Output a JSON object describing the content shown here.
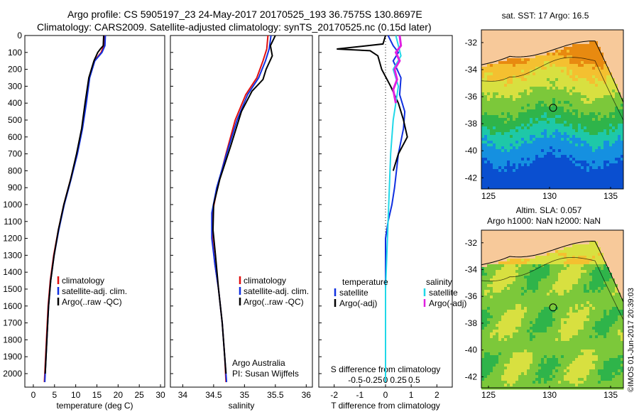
{
  "header": {
    "line1": "Argo profile: CS 5905197_23 24-May-2017 20170525_193 36.7575S 130.8697E",
    "line2": "Climatology: CARS2009. Satellite-adjusted climatology: synTS_20170525.nc (0.15d later)"
  },
  "side_text": "©IMOS 01-Jun-2017 20:39:03",
  "colors": {
    "clim": "#e01010",
    "sat": "#1030e0",
    "argo": "#000000",
    "sat_s": "#20d8e8",
    "argo_s": "#e020e0",
    "land": "#f7c99a",
    "frame": "#000000"
  },
  "chart_data": [
    {
      "id": "temp",
      "type": "line",
      "xlabel": "temperature (deg C)",
      "ylabel": "",
      "xlim": [
        -2,
        31
      ],
      "ylim": [
        2080,
        0
      ],
      "xticks": [
        0,
        5,
        10,
        15,
        20,
        25,
        30
      ],
      "yticks": [
        0,
        100,
        200,
        300,
        400,
        500,
        600,
        700,
        800,
        900,
        1000,
        1100,
        1200,
        1300,
        1400,
        1500,
        1600,
        1700,
        1800,
        1900,
        2000
      ],
      "legend": [
        "climatology",
        "satellite-adj. clim.",
        "Argo(..raw -QC)"
      ],
      "series": [
        {
          "name": "climatology",
          "color": "clim",
          "points": [
            [
              16.8,
              0
            ],
            [
              16.6,
              60
            ],
            [
              16,
              100
            ],
            [
              14.4,
              150
            ],
            [
              13.2,
              250
            ],
            [
              12.4,
              400
            ],
            [
              11.5,
              550
            ],
            [
              10.3,
              700
            ],
            [
              8.8,
              850
            ],
            [
              7.2,
              1000
            ],
            [
              5.9,
              1150
            ],
            [
              4.8,
              1300
            ],
            [
              4,
              1450
            ],
            [
              3.5,
              1600
            ],
            [
              3.1,
              1800
            ],
            [
              2.6,
              2050
            ]
          ]
        },
        {
          "name": "satellite-adj. clim.",
          "color": "sat",
          "points": [
            [
              17,
              0
            ],
            [
              16.9,
              60
            ],
            [
              16.2,
              100
            ],
            [
              14.5,
              150
            ],
            [
              13.3,
              250
            ],
            [
              12.5,
              400
            ],
            [
              11.6,
              550
            ],
            [
              10.4,
              700
            ],
            [
              8.9,
              850
            ],
            [
              7.3,
              1000
            ],
            [
              6,
              1150
            ],
            [
              4.9,
              1300
            ],
            [
              4.1,
              1450
            ],
            [
              3.6,
              1600
            ],
            [
              3.2,
              1800
            ],
            [
              2.7,
              2050
            ]
          ]
        },
        {
          "name": "Argo(..raw -QC)",
          "color": "argo",
          "points": [
            [
              16.6,
              0
            ],
            [
              16.5,
              60
            ],
            [
              15.8,
              80
            ],
            [
              15.2,
              100
            ],
            [
              14.3,
              150
            ],
            [
              13.1,
              250
            ],
            [
              12.2,
              400
            ],
            [
              11.4,
              550
            ],
            [
              10.2,
              700
            ],
            [
              8.8,
              850
            ],
            [
              7.2,
              1000
            ],
            [
              5.9,
              1150
            ],
            [
              4.9,
              1300
            ],
            [
              4.1,
              1450
            ],
            [
              3.6,
              1600
            ],
            [
              3.2,
              1800
            ],
            [
              2.8,
              2000
            ]
          ]
        }
      ]
    },
    {
      "id": "sal",
      "type": "line",
      "xlabel": "salinity",
      "ylabel": "",
      "xlim": [
        33.8,
        36.1
      ],
      "ylim": [
        2080,
        0
      ],
      "xticks": [
        34,
        34.5,
        35,
        35.5,
        36
      ],
      "legend": [
        "climatology",
        "satellite-adj. clim.",
        "Argo(..raw -QC)"
      ],
      "annotation": [
        "Argo Australia",
        "PI: Susan Wijffels"
      ],
      "series": [
        {
          "name": "climatology",
          "color": "clim",
          "points": [
            [
              35.38,
              0
            ],
            [
              35.36,
              80
            ],
            [
              35.3,
              150
            ],
            [
              35.2,
              250
            ],
            [
              35.02,
              350
            ],
            [
              34.85,
              500
            ],
            [
              34.7,
              700
            ],
            [
              34.56,
              900
            ],
            [
              34.48,
              1050
            ],
            [
              34.48,
              1200
            ],
            [
              34.52,
              1350
            ],
            [
              34.58,
              1500
            ],
            [
              34.64,
              1700
            ],
            [
              34.68,
              1900
            ],
            [
              34.7,
              2050
            ]
          ]
        },
        {
          "name": "satellite-adj. clim.",
          "color": "sat",
          "points": [
            [
              35.43,
              0
            ],
            [
              35.4,
              80
            ],
            [
              35.34,
              150
            ],
            [
              35.23,
              250
            ],
            [
              35.05,
              350
            ],
            [
              34.88,
              500
            ],
            [
              34.71,
              700
            ],
            [
              34.55,
              900
            ],
            [
              34.47,
              1050
            ],
            [
              34.47,
              1200
            ],
            [
              34.52,
              1350
            ],
            [
              34.58,
              1500
            ],
            [
              34.64,
              1700
            ],
            [
              34.68,
              1900
            ],
            [
              34.71,
              2050
            ]
          ]
        },
        {
          "name": "Argo(..raw -QC)",
          "color": "argo",
          "points": [
            [
              35.5,
              0
            ],
            [
              35.42,
              60
            ],
            [
              35.45,
              120
            ],
            [
              35.35,
              200
            ],
            [
              35.3,
              260
            ],
            [
              35.12,
              330
            ],
            [
              34.95,
              450
            ],
            [
              34.78,
              650
            ],
            [
              34.6,
              850
            ],
            [
              34.5,
              1000
            ],
            [
              34.49,
              1150
            ],
            [
              34.53,
              1300
            ],
            [
              34.58,
              1500
            ],
            [
              34.64,
              1700
            ],
            [
              34.68,
              1900
            ],
            [
              34.7,
              2000
            ]
          ]
        }
      ]
    },
    {
      "id": "diff",
      "type": "line",
      "xlabel": "T difference from climatology",
      "xlabel_top": "S difference from climatology",
      "xlim": [
        -2.6,
        2.6
      ],
      "ylim": [
        2080,
        0
      ],
      "xticks": [
        -2,
        -1,
        0,
        1,
        2
      ],
      "xticks_top": [
        "-0.5",
        "-0.25",
        "0",
        "0.25",
        "0.5"
      ],
      "legend_titles": [
        "temperature",
        "salinity"
      ],
      "legend": [
        "satellite",
        "Argo(-adj)",
        "satellite",
        "Argo(-adj)"
      ],
      "series": [
        {
          "name": "satellite",
          "group": "temperature",
          "color": "sat",
          "points": [
            [
              0.1,
              0
            ],
            [
              0.3,
              60
            ],
            [
              0.5,
              100
            ],
            [
              0.3,
              150
            ],
            [
              0.6,
              250
            ],
            [
              0.55,
              350
            ],
            [
              0.75,
              450
            ],
            [
              0.7,
              550
            ],
            [
              0.5,
              700
            ],
            [
              0.35,
              900
            ],
            [
              0.25,
              1000
            ],
            [
              0.1,
              1100
            ],
            [
              0,
              1200
            ],
            [
              0,
              2050
            ]
          ]
        },
        {
          "name": "Argo(-adj)",
          "group": "temperature",
          "color": "argo",
          "points": [
            [
              0,
              0
            ],
            [
              -0.1,
              50
            ],
            [
              -1.9,
              80
            ],
            [
              -0.6,
              90
            ],
            [
              -0.3,
              120
            ],
            [
              -0.15,
              200
            ],
            [
              0.2,
              300
            ],
            [
              0.5,
              400
            ],
            [
              0.7,
              500
            ],
            [
              0.85,
              600
            ],
            [
              0.5,
              700
            ],
            [
              0.3,
              800
            ]
          ]
        },
        {
          "name": "satellite",
          "group": "salinity",
          "color": "sat_s",
          "points": [
            [
              0.4,
              0
            ],
            [
              0.5,
              60
            ],
            [
              0.6,
              120
            ],
            [
              0.3,
              200
            ],
            [
              0.5,
              300
            ],
            [
              0.4,
              400
            ],
            [
              0.3,
              500
            ],
            [
              0.2,
              700
            ],
            [
              0.15,
              900
            ],
            [
              0.1,
              1100
            ],
            [
              0.05,
              1300
            ],
            [
              0,
              1500
            ],
            [
              0,
              2050
            ]
          ]
        },
        {
          "name": "Argo(-adj)",
          "group": "salinity",
          "color": "argo_s",
          "points": [
            [
              0.55,
              0
            ],
            [
              0.6,
              60
            ],
            [
              0.4,
              100
            ],
            [
              0.55,
              150
            ],
            [
              0.35,
              200
            ],
            [
              0.45,
              260
            ],
            [
              0.3,
              320
            ],
            [
              0.4,
              400
            ]
          ]
        }
      ]
    }
  ],
  "maps": [
    {
      "title": "sat. SST: 17 Argo: 16.5",
      "xticks": [
        "125",
        "130",
        "135"
      ],
      "yticks": [
        "-32",
        "-34",
        "-36",
        "-38",
        "-40",
        "-42"
      ],
      "palette": "sst"
    },
    {
      "title": "Altim. SLA: 0.057",
      "subtitle": "Argo h1000: NaN h2000: NaN",
      "xticks": [
        "125",
        "130",
        "135"
      ],
      "yticks": [
        "-32",
        "-34",
        "-36",
        "-38",
        "-40",
        "-42"
      ],
      "palette": "sla"
    }
  ]
}
